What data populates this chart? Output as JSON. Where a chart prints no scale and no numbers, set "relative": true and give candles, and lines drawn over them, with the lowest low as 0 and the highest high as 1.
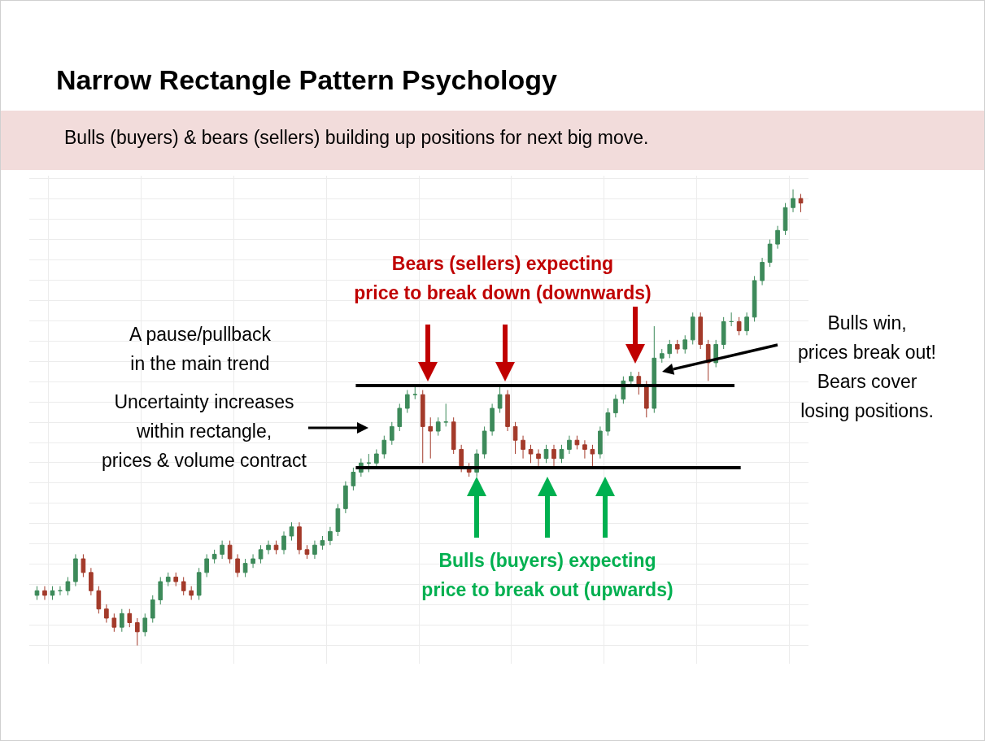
{
  "chart_data": {
    "type": "candlestick",
    "title": "Narrow Rectangle Pattern Psychology",
    "subtitle": "Bulls (buyers) & bears (sellers) building up positions for next big move.",
    "relative": true,
    "grid": true,
    "categories": [
      null,
      null,
      null,
      null,
      null,
      null,
      null,
      null,
      null,
      null,
      null,
      null,
      null,
      null,
      null,
      null,
      null,
      null,
      null,
      null,
      null,
      null,
      null,
      null,
      null,
      null,
      null,
      null,
      null,
      null,
      null,
      null,
      null,
      null,
      null,
      null,
      null,
      null,
      null,
      null,
      null,
      null,
      null,
      null,
      null,
      null,
      null,
      null,
      null,
      null,
      null,
      null,
      null,
      null,
      null,
      null,
      null,
      null,
      null,
      null,
      null,
      null,
      null,
      null,
      null,
      null,
      null,
      null,
      null,
      null,
      null,
      null,
      null,
      null,
      null,
      null,
      null,
      null,
      null,
      null,
      null,
      null,
      null,
      null,
      null,
      null,
      null,
      null,
      null,
      null,
      null,
      null,
      null,
      null,
      null,
      null,
      null,
      null,
      null,
      null
    ],
    "series": [
      {
        "ohlc": [
          [
            0.11,
            0.13,
            0.1,
            0.12
          ],
          [
            0.12,
            0.13,
            0.1,
            0.11
          ],
          [
            0.11,
            0.13,
            0.1,
            0.12
          ],
          [
            0.12,
            0.13,
            0.11,
            0.12
          ],
          [
            0.12,
            0.15,
            0.11,
            0.14
          ],
          [
            0.14,
            0.2,
            0.13,
            0.19
          ],
          [
            0.19,
            0.2,
            0.15,
            0.16
          ],
          [
            0.16,
            0.17,
            0.11,
            0.12
          ],
          [
            0.12,
            0.13,
            0.07,
            0.08
          ],
          [
            0.08,
            0.09,
            0.05,
            0.06
          ],
          [
            0.06,
            0.07,
            0.03,
            0.04
          ],
          [
            0.04,
            0.08,
            0.03,
            0.07
          ],
          [
            0.07,
            0.08,
            0.04,
            0.05
          ],
          [
            0.05,
            0.06,
            0.0,
            0.03
          ],
          [
            0.03,
            0.07,
            0.02,
            0.06
          ],
          [
            0.06,
            0.11,
            0.05,
            0.1
          ],
          [
            0.1,
            0.15,
            0.09,
            0.14
          ],
          [
            0.14,
            0.16,
            0.13,
            0.15
          ],
          [
            0.15,
            0.16,
            0.13,
            0.14
          ],
          [
            0.14,
            0.15,
            0.11,
            0.12
          ],
          [
            0.12,
            0.13,
            0.1,
            0.11
          ],
          [
            0.11,
            0.17,
            0.1,
            0.16
          ],
          [
            0.16,
            0.2,
            0.15,
            0.19
          ],
          [
            0.19,
            0.21,
            0.18,
            0.2
          ],
          [
            0.2,
            0.23,
            0.19,
            0.22
          ],
          [
            0.22,
            0.23,
            0.18,
            0.19
          ],
          [
            0.19,
            0.2,
            0.15,
            0.16
          ],
          [
            0.16,
            0.19,
            0.15,
            0.18
          ],
          [
            0.18,
            0.2,
            0.17,
            0.19
          ],
          [
            0.19,
            0.22,
            0.18,
            0.21
          ],
          [
            0.21,
            0.23,
            0.2,
            0.22
          ],
          [
            0.22,
            0.23,
            0.2,
            0.21
          ],
          [
            0.21,
            0.25,
            0.2,
            0.24
          ],
          [
            0.24,
            0.27,
            0.23,
            0.26
          ],
          [
            0.26,
            0.27,
            0.2,
            0.21
          ],
          [
            0.21,
            0.22,
            0.19,
            0.2
          ],
          [
            0.2,
            0.23,
            0.19,
            0.22
          ],
          [
            0.22,
            0.24,
            0.21,
            0.23
          ],
          [
            0.23,
            0.26,
            0.22,
            0.25
          ],
          [
            0.25,
            0.31,
            0.24,
            0.3
          ],
          [
            0.3,
            0.36,
            0.29,
            0.35
          ],
          [
            0.35,
            0.39,
            0.34,
            0.38
          ],
          [
            0.38,
            0.41,
            0.37,
            0.4
          ],
          [
            0.4,
            0.42,
            0.38,
            0.4
          ],
          [
            0.4,
            0.43,
            0.39,
            0.42
          ],
          [
            0.42,
            0.46,
            0.41,
            0.45
          ],
          [
            0.45,
            0.49,
            0.44,
            0.48
          ],
          [
            0.48,
            0.53,
            0.47,
            0.52
          ],
          [
            0.52,
            0.56,
            0.51,
            0.55
          ],
          [
            0.55,
            0.57,
            0.54,
            0.55
          ],
          [
            0.55,
            0.56,
            0.4,
            0.48
          ],
          [
            0.48,
            0.5,
            0.41,
            0.47
          ],
          [
            0.47,
            0.5,
            0.46,
            0.49
          ],
          [
            0.49,
            0.53,
            0.48,
            0.49
          ],
          [
            0.49,
            0.5,
            0.42,
            0.43
          ],
          [
            0.43,
            0.44,
            0.38,
            0.39
          ],
          [
            0.39,
            0.4,
            0.37,
            0.38
          ],
          [
            0.38,
            0.43,
            0.37,
            0.42
          ],
          [
            0.42,
            0.48,
            0.41,
            0.47
          ],
          [
            0.47,
            0.53,
            0.46,
            0.52
          ],
          [
            0.52,
            0.57,
            0.51,
            0.55
          ],
          [
            0.55,
            0.56,
            0.47,
            0.48
          ],
          [
            0.48,
            0.49,
            0.42,
            0.45
          ],
          [
            0.45,
            0.46,
            0.41,
            0.43
          ],
          [
            0.43,
            0.44,
            0.4,
            0.42
          ],
          [
            0.42,
            0.43,
            0.39,
            0.41
          ],
          [
            0.41,
            0.44,
            0.4,
            0.43
          ],
          [
            0.43,
            0.44,
            0.39,
            0.41
          ],
          [
            0.41,
            0.44,
            0.4,
            0.43
          ],
          [
            0.43,
            0.46,
            0.42,
            0.45
          ],
          [
            0.45,
            0.46,
            0.43,
            0.44
          ],
          [
            0.44,
            0.45,
            0.41,
            0.43
          ],
          [
            0.43,
            0.44,
            0.39,
            0.42
          ],
          [
            0.42,
            0.48,
            0.41,
            0.47
          ],
          [
            0.47,
            0.52,
            0.46,
            0.51
          ],
          [
            0.51,
            0.55,
            0.5,
            0.54
          ],
          [
            0.54,
            0.59,
            0.53,
            0.58
          ],
          [
            0.58,
            0.6,
            0.57,
            0.59
          ],
          [
            0.59,
            0.6,
            0.55,
            0.57
          ],
          [
            0.57,
            0.58,
            0.5,
            0.52
          ],
          [
            0.52,
            0.7,
            0.51,
            0.63
          ],
          [
            0.63,
            0.65,
            0.62,
            0.64
          ],
          [
            0.64,
            0.67,
            0.63,
            0.66
          ],
          [
            0.66,
            0.67,
            0.64,
            0.65
          ],
          [
            0.65,
            0.68,
            0.64,
            0.67
          ],
          [
            0.67,
            0.73,
            0.66,
            0.72
          ],
          [
            0.72,
            0.73,
            0.65,
            0.66
          ],
          [
            0.66,
            0.67,
            0.58,
            0.62
          ],
          [
            0.62,
            0.67,
            0.61,
            0.66
          ],
          [
            0.66,
            0.72,
            0.65,
            0.71
          ],
          [
            0.71,
            0.73,
            0.7,
            0.71
          ],
          [
            0.71,
            0.72,
            0.68,
            0.69
          ],
          [
            0.69,
            0.73,
            0.68,
            0.72
          ],
          [
            0.72,
            0.81,
            0.71,
            0.8
          ],
          [
            0.8,
            0.85,
            0.79,
            0.84
          ],
          [
            0.84,
            0.89,
            0.83,
            0.88
          ],
          [
            0.88,
            0.92,
            0.87,
            0.91
          ],
          [
            0.91,
            0.97,
            0.9,
            0.96
          ],
          [
            0.96,
            1.0,
            0.95,
            0.98
          ],
          [
            0.98,
            0.99,
            0.95,
            0.97
          ]
        ],
        "colors": [
          "#3d8a5a",
          "#a33a2a",
          "#3d8a5a",
          "#3d8a5a",
          "#3d8a5a",
          "#3d8a5a",
          "#a33a2a",
          "#a33a2a",
          "#a33a2a",
          "#a33a2a",
          "#a33a2a",
          "#3d8a5a",
          "#a33a2a",
          "#a33a2a",
          "#3d8a5a",
          "#3d8a5a",
          "#3d8a5a",
          "#3d8a5a",
          "#a33a2a",
          "#a33a2a",
          "#a33a2a",
          "#3d8a5a",
          "#3d8a5a",
          "#3d8a5a",
          "#3d8a5a",
          "#a33a2a",
          "#a33a2a",
          "#3d8a5a",
          "#3d8a5a",
          "#3d8a5a",
          "#3d8a5a",
          "#a33a2a",
          "#3d8a5a",
          "#3d8a5a",
          "#a33a2a",
          "#a33a2a",
          "#3d8a5a",
          "#3d8a5a",
          "#3d8a5a",
          "#3d8a5a",
          "#3d8a5a",
          "#3d8a5a",
          "#3d8a5a",
          "#3d8a5a",
          "#3d8a5a",
          "#3d8a5a",
          "#3d8a5a",
          "#3d8a5a",
          "#3d8a5a",
          "#3d8a5a",
          "#a33a2a",
          "#a33a2a",
          "#3d8a5a",
          "#3d8a5a",
          "#a33a2a",
          "#a33a2a",
          "#a33a2a",
          "#3d8a5a",
          "#3d8a5a",
          "#3d8a5a",
          "#3d8a5a",
          "#a33a2a",
          "#a33a2a",
          "#a33a2a",
          "#a33a2a",
          "#a33a2a",
          "#3d8a5a",
          "#a33a2a",
          "#3d8a5a",
          "#3d8a5a",
          "#a33a2a",
          "#a33a2a",
          "#a33a2a",
          "#3d8a5a",
          "#3d8a5a",
          "#3d8a5a",
          "#3d8a5a",
          "#3d8a5a",
          "#a33a2a",
          "#a33a2a",
          "#3d8a5a",
          "#3d8a5a",
          "#3d8a5a",
          "#a33a2a",
          "#3d8a5a",
          "#3d8a5a",
          "#a33a2a",
          "#a33a2a",
          "#3d8a5a",
          "#3d8a5a",
          "#3d8a5a",
          "#a33a2a",
          "#3d8a5a",
          "#3d8a5a",
          "#3d8a5a",
          "#3d8a5a",
          "#3d8a5a",
          "#3d8a5a",
          "#3d8a5a",
          "#a33a2a"
        ]
      }
    ],
    "ref_lines": [
      {
        "axis": "y",
        "value": 0.57,
        "color": "#000000"
      },
      {
        "axis": "y",
        "value": 0.39,
        "color": "#000000"
      }
    ],
    "annotations": [
      "A pause/pullback\nin the main trend",
      "Uncertainty increases\nwithin rectangle,\nprices & volume contract",
      "Bears (sellers) expecting\nprice to break down (downwards)",
      "Bulls (buyers) expecting\nprice to break out (upwards)",
      "Bulls win,\nprices break out!\nBears cover\nlosing positions."
    ]
  }
}
